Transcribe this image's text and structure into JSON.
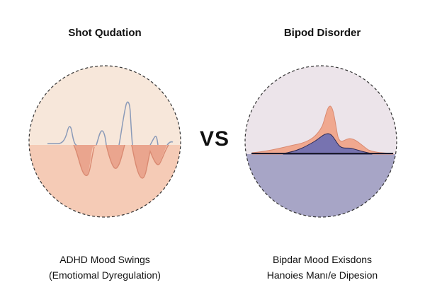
{
  "left_panel": {
    "title": "Shot Qudation",
    "caption_line1": "ADHD Mood Swings",
    "caption_line2": "(Emotiomal Dyregulation)",
    "colors": {
      "top_fill": "#f7e7da",
      "bottom_fill": "#f5cbb6",
      "wave_upper": "#8a9ab8",
      "wave_fill": "#eaa58e"
    }
  },
  "right_panel": {
    "title": "Bipod Disorder",
    "caption_line1": "Bipdar Mood Exisdons",
    "caption_line2": "Hanoies Manı/e Dipesion",
    "colors": {
      "top_fill": "#ece4ea",
      "bottom_fill": "#a7a5c6",
      "peak_orange": "#f0a88f",
      "peak_purple": "#7773b0"
    }
  },
  "center": {
    "label": "VS"
  }
}
